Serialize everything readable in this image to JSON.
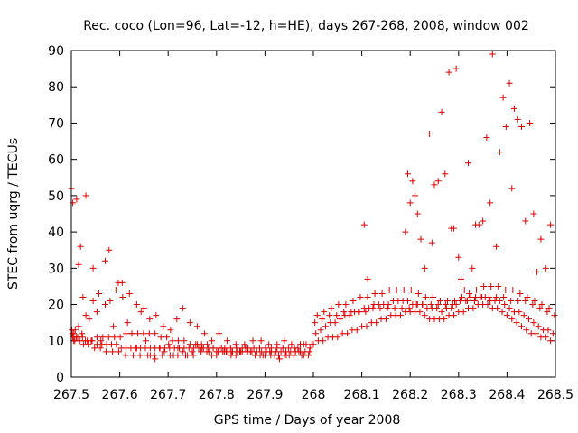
{
  "chart_data": {
    "type": "scatter",
    "title": "Rec. coco (Lon=96, Lat=-12, h=HE), days 267-268, 2008, window 002",
    "xlabel": "GPS time / Days of year 2008",
    "ylabel": "STEC from uqrg / TECUs",
    "xlim": [
      267.5,
      268.5
    ],
    "ylim": [
      0,
      90
    ],
    "xticks": [
      267.5,
      267.6,
      267.7,
      267.8,
      267.9,
      268,
      268.1,
      268.2,
      268.3,
      268.4,
      268.5
    ],
    "xtick_labels": [
      "267.5",
      "267.6",
      "267.7",
      "267.8",
      "267.9",
      "268",
      "268.1",
      "268.2",
      "268.3",
      "268.4",
      "268.5"
    ],
    "yticks": [
      0,
      10,
      20,
      30,
      40,
      50,
      60,
      70,
      80,
      90
    ],
    "ytick_labels": [
      "0",
      "10",
      "20",
      "30",
      "40",
      "50",
      "60",
      "70",
      "80",
      "90"
    ],
    "marker": "+",
    "color": "#e00000",
    "grid": false,
    "series": [
      {
        "name": "STEC",
        "x": [
          267.5,
          267.503,
          267.507,
          267.511,
          267.515,
          267.519,
          267.524,
          267.53,
          267.537,
          267.545,
          267.553,
          267.561,
          267.57,
          267.578,
          267.587,
          267.597,
          267.606,
          267.616,
          267.625,
          267.635,
          267.644,
          267.654,
          267.663,
          267.673,
          267.682,
          267.692,
          267.701,
          267.711,
          267.72,
          267.73,
          267.74,
          267.75,
          267.76,
          267.77,
          267.78,
          267.79,
          267.8,
          267.81,
          267.82,
          267.83,
          267.84,
          267.85,
          267.86,
          267.87,
          267.88,
          267.89,
          267.9,
          267.91,
          267.92,
          267.93,
          267.94,
          267.95,
          267.96,
          267.97,
          267.98,
          267.99,
          267.503,
          267.513,
          267.523,
          267.533,
          267.543,
          267.553,
          267.563,
          267.573,
          267.583,
          267.593,
          267.603,
          267.613,
          267.623,
          267.633,
          267.643,
          267.653,
          267.663,
          267.673,
          267.683,
          267.693,
          267.703,
          267.713,
          267.723,
          267.733,
          267.743,
          267.753,
          267.763,
          267.773,
          267.783,
          267.793,
          267.803,
          267.813,
          267.823,
          267.833,
          267.843,
          267.853,
          267.863,
          267.873,
          267.883,
          267.893,
          267.903,
          267.913,
          267.923,
          267.933,
          267.943,
          267.953,
          267.963,
          267.973,
          267.983,
          267.993,
          267.505,
          267.517,
          267.529,
          267.541,
          267.553,
          267.565,
          267.577,
          267.589,
          267.601,
          267.613,
          267.625,
          267.637,
          267.649,
          267.661,
          267.673,
          267.685,
          267.697,
          267.709,
          267.721,
          267.733,
          267.745,
          267.757,
          267.769,
          267.781,
          267.793,
          267.805,
          267.817,
          267.829,
          267.841,
          267.853,
          267.865,
          267.877,
          267.889,
          267.901,
          267.913,
          267.925,
          267.937,
          267.949,
          267.961,
          267.973,
          267.985,
          267.997,
          267.502,
          267.508,
          267.515,
          267.522,
          267.53,
          267.545,
          267.557,
          267.57,
          267.58,
          267.592,
          267.605,
          267.62,
          267.635,
          267.65,
          267.662,
          267.675,
          267.69,
          267.705,
          267.718,
          267.73,
          267.745,
          267.76,
          267.775,
          267.79,
          267.805,
          267.822,
          267.84,
          267.858,
          267.875,
          267.892,
          267.908,
          267.925,
          267.94,
          267.955,
          267.968,
          267.98,
          267.501,
          267.505,
          267.51,
          267.517,
          267.525,
          267.535,
          267.548,
          267.56,
          267.572,
          267.585,
          267.598,
          267.612,
          267.628,
          267.642,
          267.658,
          267.672,
          267.688,
          267.704,
          267.72,
          267.736,
          267.752,
          267.768,
          267.784,
          267.8,
          267.816,
          267.832,
          267.848,
          267.864,
          267.88,
          267.896,
          267.912,
          267.928,
          267.944,
          267.96,
          267.976,
          267.992,
          268.0,
          268.01,
          268.02,
          268.03,
          268.04,
          268.05,
          268.06,
          268.07,
          268.08,
          268.09,
          268.1,
          268.11,
          268.12,
          268.13,
          268.14,
          268.15,
          268.16,
          268.17,
          268.18,
          268.19,
          268.2,
          268.21,
          268.22,
          268.23,
          268.24,
          268.25,
          268.26,
          268.27,
          268.28,
          268.29,
          268.3,
          268.31,
          268.32,
          268.33,
          268.34,
          268.35,
          268.36,
          268.37,
          268.38,
          268.39,
          268.4,
          268.41,
          268.42,
          268.43,
          268.44,
          268.45,
          268.46,
          268.47,
          268.48,
          268.49,
          268.005,
          268.015,
          268.025,
          268.035,
          268.045,
          268.055,
          268.065,
          268.075,
          268.085,
          268.095,
          268.105,
          268.115,
          268.125,
          268.135,
          268.145,
          268.155,
          268.165,
          268.175,
          268.185,
          268.195,
          268.205,
          268.215,
          268.225,
          268.235,
          268.245,
          268.255,
          268.265,
          268.275,
          268.285,
          268.295,
          268.305,
          268.315,
          268.325,
          268.335,
          268.345,
          268.355,
          268.365,
          268.375,
          268.385,
          268.395,
          268.405,
          268.415,
          268.425,
          268.435,
          268.445,
          268.455,
          268.465,
          268.475,
          268.485,
          268.495,
          268.003,
          268.018,
          268.033,
          268.048,
          268.063,
          268.078,
          268.093,
          268.108,
          268.123,
          268.138,
          268.153,
          268.168,
          268.183,
          268.198,
          268.213,
          268.228,
          268.243,
          268.258,
          268.273,
          268.288,
          268.303,
          268.318,
          268.333,
          268.348,
          268.363,
          268.378,
          268.393,
          268.408,
          268.423,
          268.438,
          268.453,
          268.468,
          268.483,
          268.498,
          268.008,
          268.022,
          268.037,
          268.052,
          268.067,
          268.082,
          268.097,
          268.112,
          268.127,
          268.142,
          268.157,
          268.172,
          268.187,
          268.202,
          268.217,
          268.232,
          268.247,
          268.262,
          268.277,
          268.292,
          268.307,
          268.322,
          268.337,
          268.352,
          268.367,
          268.382,
          268.397,
          268.412,
          268.427,
          268.442,
          268.457,
          268.472,
          268.487,
          268.105,
          268.112,
          268.19,
          268.195,
          268.2,
          268.205,
          268.21,
          268.215,
          268.222,
          268.23,
          268.24,
          268.245,
          268.25,
          268.258,
          268.265,
          268.272,
          268.28,
          268.285,
          268.29,
          268.295,
          268.3,
          268.305,
          268.312,
          268.32,
          268.328,
          268.335,
          268.342,
          268.35,
          268.358,
          268.365,
          268.37,
          268.378,
          268.385,
          268.392,
          268.398,
          268.405,
          268.41,
          268.415,
          268.422,
          268.43,
          268.438,
          268.447,
          268.455,
          268.462,
          268.47,
          268.48,
          268.49
        ],
        "y": [
          52,
          48,
          10,
          49,
          31,
          36,
          22,
          50,
          16,
          30,
          18,
          10,
          32,
          35,
          14,
          26,
          22,
          15,
          12,
          8,
          18,
          10,
          6,
          5,
          8,
          7,
          9,
          6,
          8,
          7,
          6,
          7,
          9,
          8,
          7,
          6,
          6,
          8,
          7,
          6,
          6,
          7,
          8,
          7,
          6,
          6,
          6,
          7,
          6,
          5,
          6,
          6,
          6,
          7,
          6,
          6,
          11,
          11,
          11,
          10,
          10,
          9,
          9,
          9,
          9,
          9,
          8,
          8,
          8,
          8,
          8,
          8,
          8,
          8,
          8,
          8,
          8,
          8,
          8,
          8,
          8,
          8,
          8,
          8,
          8,
          8,
          7,
          7,
          7,
          7,
          7,
          7,
          7,
          7,
          7,
          7,
          7,
          7,
          7,
          7,
          7,
          7,
          7,
          7,
          7,
          8,
          10,
          10,
          10,
          10,
          11,
          11,
          11,
          11,
          11,
          12,
          12,
          12,
          12,
          12,
          12,
          11,
          11,
          10,
          10,
          10,
          9,
          9,
          9,
          9,
          8,
          8,
          8,
          8,
          8,
          8,
          8,
          8,
          8,
          8,
          8,
          8,
          8,
          8,
          8,
          9,
          9,
          9,
          12,
          13,
          14,
          12,
          17,
          21,
          23,
          20,
          21,
          24,
          26,
          23,
          20,
          19,
          16,
          17,
          14,
          13,
          16,
          19,
          15,
          14,
          12,
          10,
          12,
          10,
          9,
          9,
          10,
          10,
          9,
          9,
          10,
          9,
          8,
          9,
          13,
          12,
          11,
          10,
          9,
          9,
          8,
          8,
          7,
          7,
          7,
          6,
          6,
          6,
          6,
          6,
          6,
          6,
          6,
          6,
          6,
          7,
          7,
          7,
          7,
          7,
          7,
          7,
          6,
          6,
          6,
          6,
          6,
          6,
          6,
          7,
          9,
          10,
          10,
          11,
          11,
          11,
          12,
          12,
          13,
          13,
          14,
          14,
          15,
          15,
          16,
          16,
          17,
          17,
          17,
          18,
          18,
          18,
          18,
          17,
          16,
          16,
          16,
          16,
          17,
          17,
          18,
          18,
          19,
          19,
          20,
          20,
          20,
          19,
          19,
          18,
          17,
          16,
          15,
          14,
          13,
          12,
          12,
          11,
          11,
          10,
          12,
          13,
          14,
          15,
          15,
          16,
          17,
          17,
          18,
          18,
          19,
          19,
          20,
          20,
          20,
          20,
          21,
          21,
          21,
          21,
          20,
          20,
          20,
          19,
          19,
          19,
          18,
          19,
          19,
          20,
          21,
          21,
          22,
          22,
          22,
          22,
          21,
          21,
          21,
          20,
          19,
          18,
          18,
          17,
          16,
          15,
          14,
          13,
          13,
          12,
          15,
          16,
          17,
          17,
          18,
          18,
          18,
          18,
          19,
          19,
          19,
          19,
          19,
          19,
          20,
          20,
          20,
          20,
          20,
          20,
          21,
          21,
          21,
          22,
          22,
          22,
          22,
          21,
          21,
          21,
          20,
          19,
          18,
          17,
          17,
          18,
          19,
          20,
          20,
          21,
          22,
          22,
          23,
          23,
          24,
          24,
          24,
          24,
          23,
          22,
          22,
          21,
          21,
          21,
          22,
          23,
          24,
          25,
          25,
          25,
          24,
          24,
          23,
          22,
          21,
          20,
          19,
          42,
          27,
          40,
          56,
          48,
          54,
          50,
          45,
          38,
          30,
          67,
          37,
          53,
          54,
          73,
          56,
          84,
          41,
          41,
          85,
          33,
          27,
          24,
          59,
          30,
          42,
          42,
          43,
          66,
          48,
          89,
          36,
          62,
          77,
          69,
          81,
          52,
          74,
          71,
          69,
          43,
          70,
          45,
          29,
          38,
          30,
          42
        ]
      }
    ]
  }
}
